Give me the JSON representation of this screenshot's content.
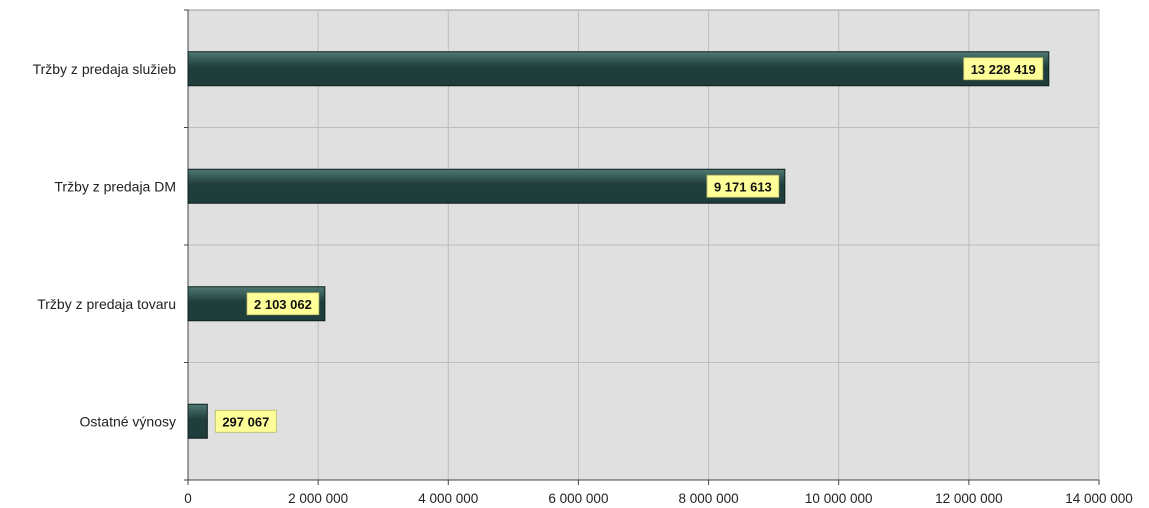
{
  "chart_data": {
    "type": "bar",
    "orientation": "horizontal",
    "categories": [
      "Tržby z predaja služieb",
      "Tržby z predaja DM",
      "Tržby z predaja tovaru",
      "Ostatné výnosy"
    ],
    "values": [
      13228419,
      9171613,
      2103062,
      297067
    ],
    "data_labels": [
      "13 228 419",
      "9 171 613",
      "2 103 062",
      "297 067"
    ],
    "xlim": [
      0,
      14000000
    ],
    "x_ticks": [
      0,
      2000000,
      4000000,
      6000000,
      8000000,
      10000000,
      12000000,
      14000000
    ],
    "x_tick_labels": [
      "0",
      "2 000 000",
      "4 000 000",
      "6 000 000",
      "8 000 000",
      "10 000 000",
      "12 000 000",
      "14 000 000"
    ],
    "grid": true,
    "legend": "none",
    "colors": {
      "plot_background": "#e0e0e0",
      "bar_fill": "#1f3d3a",
      "bar_highlight": "#4f7a74",
      "data_label_background": "#ffff99",
      "gridline": "#bdbdbd"
    }
  }
}
